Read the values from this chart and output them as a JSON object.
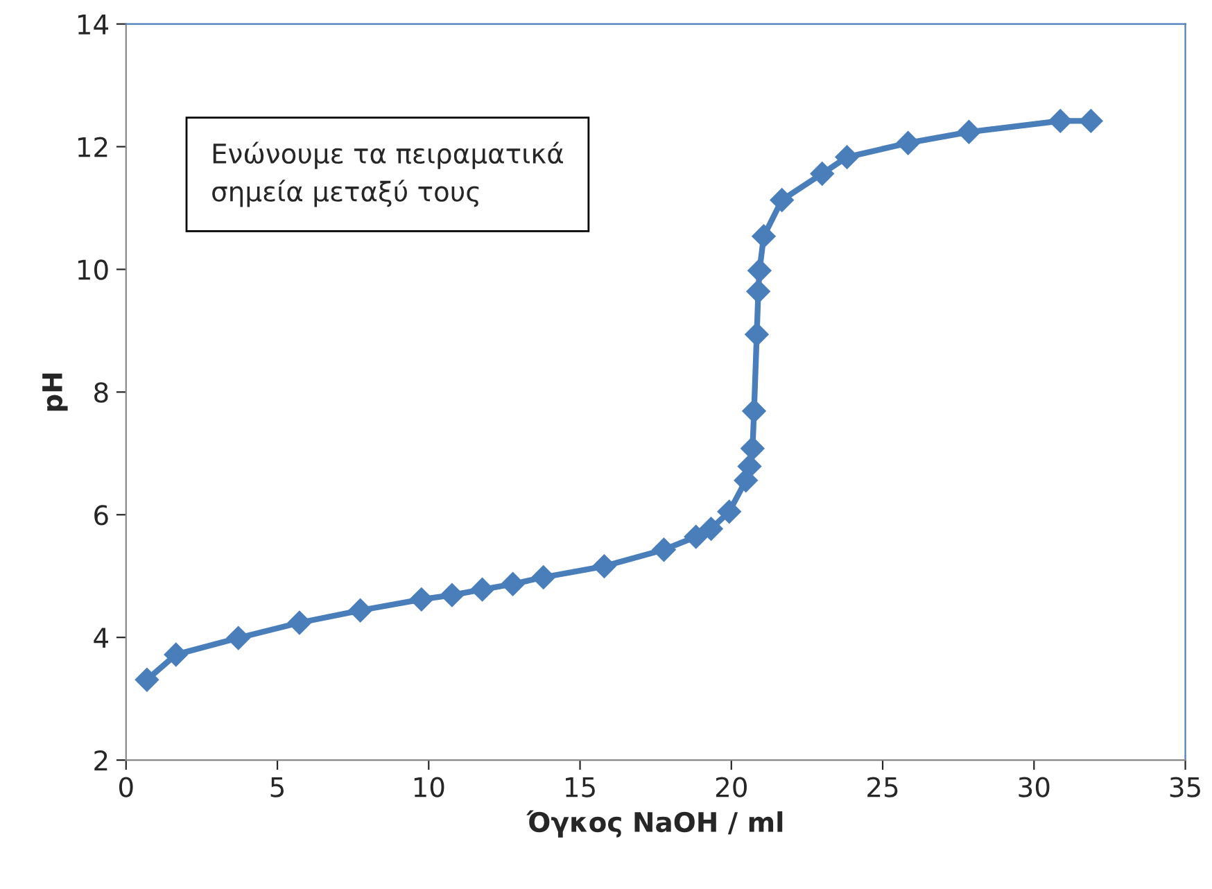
{
  "chart_data": {
    "type": "line",
    "xlabel": "Όγκος NaOH / ml",
    "ylabel": "pH",
    "x": [
      0.69,
      1.65,
      3.71,
      5.73,
      7.74,
      9.76,
      10.77,
      11.77,
      12.78,
      13.79,
      15.8,
      17.77,
      18.83,
      19.33,
      19.93,
      20.48,
      20.6,
      20.7,
      20.75,
      20.84,
      20.89,
      20.93,
      21.07,
      21.67,
      23.0,
      23.82,
      25.84,
      27.85,
      30.87,
      31.88
    ],
    "series": [
      {
        "color": "#4a7ebb",
        "values": [
          3.31,
          3.72,
          3.99,
          4.24,
          4.44,
          4.62,
          4.69,
          4.78,
          4.87,
          4.98,
          5.16,
          5.43,
          5.64,
          5.77,
          6.05,
          6.56,
          6.79,
          7.08,
          7.69,
          8.94,
          9.64,
          9.98,
          10.54,
          11.13,
          11.56,
          11.83,
          12.06,
          12.24,
          12.42,
          12.42
        ]
      }
    ],
    "xlim": [
      0,
      35
    ],
    "xticks": [
      0,
      5,
      10,
      15,
      20,
      25,
      30,
      35
    ],
    "ylim": [
      2,
      14
    ],
    "yticks": [
      2,
      4,
      6,
      8,
      10,
      12,
      14
    ],
    "annotations": [
      "Ενώνουμε τα πειραματικά\nσημεία μεταξύ τους"
    ],
    "marker": "diamond",
    "line_style": "solid",
    "grid": false,
    "legend": false
  }
}
